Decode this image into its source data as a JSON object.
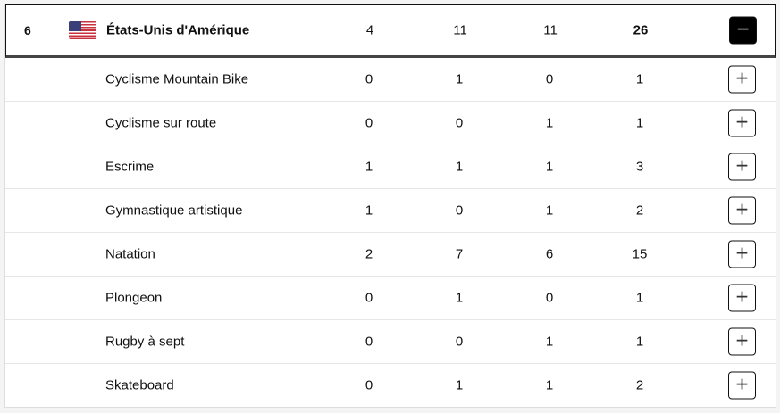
{
  "country": {
    "rank": "6",
    "flag_icon": "usa-flag-icon",
    "name": "États-Unis d'Amérique",
    "gold": "4",
    "silver": "11",
    "bronze": "11",
    "total": "26",
    "toggle": "−"
  },
  "sports": [
    {
      "name": "Cyclisme Mountain Bike",
      "gold": "0",
      "silver": "1",
      "bronze": "0",
      "total": "1",
      "toggle": "+"
    },
    {
      "name": "Cyclisme sur route",
      "gold": "0",
      "silver": "0",
      "bronze": "1",
      "total": "1",
      "toggle": "+"
    },
    {
      "name": "Escrime",
      "gold": "1",
      "silver": "1",
      "bronze": "1",
      "total": "3",
      "toggle": "+"
    },
    {
      "name": "Gymnastique artistique",
      "gold": "1",
      "silver": "0",
      "bronze": "1",
      "total": "2",
      "toggle": "+"
    },
    {
      "name": "Natation",
      "gold": "2",
      "silver": "7",
      "bronze": "6",
      "total": "15",
      "toggle": "+"
    },
    {
      "name": "Plongeon",
      "gold": "0",
      "silver": "1",
      "bronze": "0",
      "total": "1",
      "toggle": "+"
    },
    {
      "name": "Rugby à sept",
      "gold": "0",
      "silver": "0",
      "bronze": "1",
      "total": "1",
      "toggle": "+"
    },
    {
      "name": "Skateboard",
      "gold": "0",
      "silver": "1",
      "bronze": "1",
      "total": "2",
      "toggle": "+"
    }
  ]
}
